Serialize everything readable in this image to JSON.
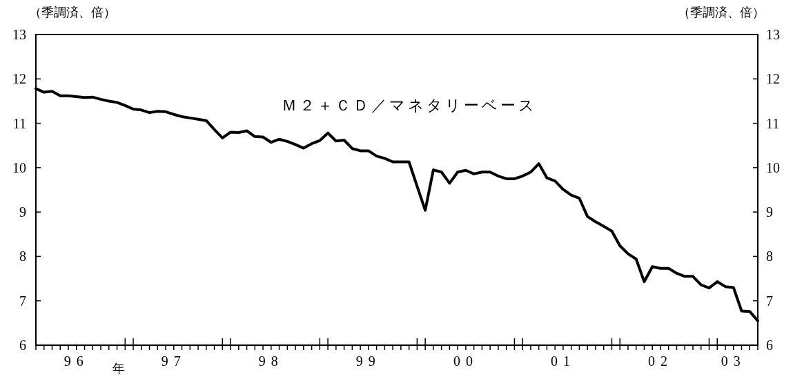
{
  "chart_data": {
    "type": "line",
    "ylabel": "（季調済、倍）",
    "y2label": "（季調済、倍）",
    "annotations": [
      "年"
    ],
    "x": [
      "1996-01",
      "1996-02",
      "1996-03",
      "1996-04",
      "1996-05",
      "1996-06",
      "1996-07",
      "1996-08",
      "1996-09",
      "1996-10",
      "1996-11",
      "1996-12",
      "1997-01",
      "1997-02",
      "1997-03",
      "1997-04",
      "1997-05",
      "1997-06",
      "1997-07",
      "1997-08",
      "1997-09",
      "1997-10",
      "1997-11",
      "1997-12",
      "1998-01",
      "1998-02",
      "1998-03",
      "1998-04",
      "1998-05",
      "1998-06",
      "1998-07",
      "1998-08",
      "1998-09",
      "1998-10",
      "1998-11",
      "1998-12",
      "1999-01",
      "1999-02",
      "1999-03",
      "1999-04",
      "1999-05",
      "1999-06",
      "1999-07",
      "1999-08",
      "1999-09",
      "1999-10",
      "1999-11",
      "1999-12",
      "2000-01",
      "2000-02",
      "2000-03",
      "2000-04",
      "2000-05",
      "2000-06",
      "2000-07",
      "2000-08",
      "2000-09",
      "2000-10",
      "2000-11",
      "2000-12",
      "2001-01",
      "2001-02",
      "2001-03",
      "2001-04",
      "2001-05",
      "2001-06",
      "2001-07",
      "2001-08",
      "2001-09",
      "2001-10",
      "2001-11",
      "2001-12",
      "2002-01",
      "2002-02",
      "2002-03",
      "2002-04",
      "2002-05",
      "2002-06",
      "2002-07",
      "2002-08",
      "2002-09",
      "2002-10",
      "2002-11",
      "2002-12",
      "2003-01",
      "2003-02",
      "2003-03",
      "2003-04",
      "2003-05",
      "2003-06"
    ],
    "series": [
      {
        "name": "Ｍ２＋ＣＤ／マネタリーベース",
        "color": "#000000",
        "values": [
          11.78,
          11.7,
          11.72,
          11.62,
          11.62,
          11.6,
          11.58,
          11.59,
          11.54,
          11.5,
          11.47,
          11.4,
          11.32,
          11.3,
          11.24,
          11.27,
          11.26,
          11.2,
          11.15,
          11.12,
          11.09,
          11.06,
          10.86,
          10.67,
          10.8,
          10.79,
          10.83,
          10.7,
          10.69,
          10.57,
          10.64,
          10.59,
          10.52,
          10.44,
          10.54,
          10.61,
          10.78,
          10.6,
          10.62,
          10.43,
          10.38,
          10.38,
          10.26,
          10.21,
          10.13,
          10.13,
          10.13,
          9.58,
          9.04,
          9.95,
          9.9,
          9.65,
          9.9,
          9.94,
          9.86,
          9.9,
          9.9,
          9.81,
          9.75,
          9.75,
          9.81,
          9.9,
          10.09,
          9.77,
          9.7,
          9.51,
          9.38,
          9.31,
          8.9,
          8.78,
          8.68,
          8.57,
          8.24,
          8.06,
          7.94,
          7.43,
          7.77,
          7.73,
          7.73,
          7.62,
          7.55,
          7.55,
          7.36,
          7.29,
          7.43,
          7.32,
          7.3,
          6.77,
          6.76,
          6.55
        ]
      }
    ],
    "xlim": [
      "1996-01",
      "2003-06"
    ],
    "xticks": [
      {
        "value": "1996-01",
        "label": null
      },
      {
        "value": "1996-02",
        "label": null
      },
      {
        "value": "1996-03",
        "label": null
      },
      {
        "value": "1996-04",
        "label": null
      },
      {
        "value": "1996-05",
        "label": null
      },
      {
        "value": "1996-06",
        "label": "96"
      },
      {
        "value": "1996-07",
        "label": null
      },
      {
        "value": "1996-08",
        "label": null
      },
      {
        "value": "1996-09",
        "label": null
      },
      {
        "value": "1996-10",
        "label": null
      },
      {
        "value": "1996-11",
        "label": null
      },
      {
        "value": "1996-12",
        "label": null
      },
      {
        "value": "1997-01",
        "label": null
      },
      {
        "value": "1997-02",
        "label": null
      },
      {
        "value": "1997-03",
        "label": null
      },
      {
        "value": "1997-04",
        "label": null
      },
      {
        "value": "1997-05",
        "label": null
      },
      {
        "value": "1997-06",
        "label": "97"
      },
      {
        "value": "1997-07",
        "label": null
      },
      {
        "value": "1997-08",
        "label": null
      },
      {
        "value": "1997-09",
        "label": null
      },
      {
        "value": "1997-10",
        "label": null
      },
      {
        "value": "1997-11",
        "label": null
      },
      {
        "value": "1997-12",
        "label": null
      },
      {
        "value": "1998-01",
        "label": null
      },
      {
        "value": "1998-02",
        "label": null
      },
      {
        "value": "1998-03",
        "label": null
      },
      {
        "value": "1998-04",
        "label": null
      },
      {
        "value": "1998-05",
        "label": null
      },
      {
        "value": "1998-06",
        "label": "98"
      },
      {
        "value": "1998-07",
        "label": null
      },
      {
        "value": "1998-08",
        "label": null
      },
      {
        "value": "1998-09",
        "label": null
      },
      {
        "value": "1998-10",
        "label": null
      },
      {
        "value": "1998-11",
        "label": null
      },
      {
        "value": "1998-12",
        "label": null
      },
      {
        "value": "1999-01",
        "label": null
      },
      {
        "value": "1999-02",
        "label": null
      },
      {
        "value": "1999-03",
        "label": null
      },
      {
        "value": "1999-04",
        "label": null
      },
      {
        "value": "1999-05",
        "label": null
      },
      {
        "value": "1999-06",
        "label": "99"
      },
      {
        "value": "1999-07",
        "label": null
      },
      {
        "value": "1999-08",
        "label": null
      },
      {
        "value": "1999-09",
        "label": null
      },
      {
        "value": "1999-10",
        "label": null
      },
      {
        "value": "1999-11",
        "label": null
      },
      {
        "value": "1999-12",
        "label": null
      },
      {
        "value": "2000-01",
        "label": null
      },
      {
        "value": "2000-02",
        "label": null
      },
      {
        "value": "2000-03",
        "label": null
      },
      {
        "value": "2000-04",
        "label": null
      },
      {
        "value": "2000-05",
        "label": null
      },
      {
        "value": "2000-06",
        "label": "00"
      },
      {
        "value": "2000-07",
        "label": null
      },
      {
        "value": "2000-08",
        "label": null
      },
      {
        "value": "2000-09",
        "label": null
      },
      {
        "value": "2000-10",
        "label": null
      },
      {
        "value": "2000-11",
        "label": null
      },
      {
        "value": "2000-12",
        "label": null
      },
      {
        "value": "2001-01",
        "label": null
      },
      {
        "value": "2001-02",
        "label": null
      },
      {
        "value": "2001-03",
        "label": null
      },
      {
        "value": "2001-04",
        "label": null
      },
      {
        "value": "2001-05",
        "label": null
      },
      {
        "value": "2001-06",
        "label": "01"
      },
      {
        "value": "2001-07",
        "label": null
      },
      {
        "value": "2001-08",
        "label": null
      },
      {
        "value": "2001-09",
        "label": null
      },
      {
        "value": "2001-10",
        "label": null
      },
      {
        "value": "2001-11",
        "label": null
      },
      {
        "value": "2001-12",
        "label": null
      },
      {
        "value": "2002-01",
        "label": null
      },
      {
        "value": "2002-02",
        "label": null
      },
      {
        "value": "2002-03",
        "label": null
      },
      {
        "value": "2002-04",
        "label": null
      },
      {
        "value": "2002-05",
        "label": null
      },
      {
        "value": "2002-06",
        "label": "02"
      },
      {
        "value": "2002-07",
        "label": null
      },
      {
        "value": "2002-08",
        "label": null
      },
      {
        "value": "2002-09",
        "label": null
      },
      {
        "value": "2002-10",
        "label": null
      },
      {
        "value": "2002-11",
        "label": null
      },
      {
        "value": "2002-12",
        "label": null
      },
      {
        "value": "2003-01",
        "label": null
      },
      {
        "value": "2003-02",
        "label": null
      },
      {
        "value": "2003-03",
        "label": "03"
      },
      {
        "value": "2003-04",
        "label": null
      },
      {
        "value": "2003-05",
        "label": null
      },
      {
        "value": "2003-06",
        "label": null
      }
    ],
    "ylim": [
      6,
      13
    ],
    "yticks": [
      6,
      7,
      8,
      9,
      10,
      11,
      12,
      13
    ],
    "y2lim": [
      6,
      13
    ],
    "y2ticks": [
      6,
      7,
      8,
      9,
      10,
      11,
      12,
      13
    ],
    "grid": false,
    "legend": false,
    "marker": "none",
    "line_style": "solid"
  }
}
